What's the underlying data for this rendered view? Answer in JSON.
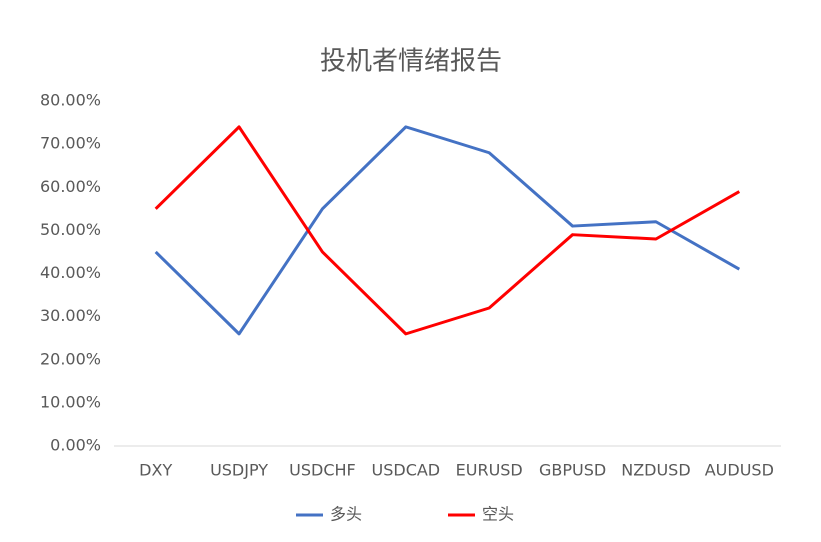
{
  "chart_data": {
    "type": "line",
    "title": "投机者情绪报告",
    "categories": [
      "DXY",
      "USDJPY",
      "USDCHF",
      "USDCAD",
      "EURUSD",
      "GBPUSD",
      "NZDUSD",
      "AUDUSD"
    ],
    "series": [
      {
        "name": "多头",
        "color": "#4472c4",
        "values": [
          45,
          26,
          55,
          74,
          68,
          51,
          52,
          41
        ]
      },
      {
        "name": "空头",
        "color": "#ff0000",
        "values": [
          55,
          74,
          45,
          26,
          32,
          49,
          48,
          59
        ]
      }
    ],
    "ylim": [
      0,
      80
    ],
    "yticks": [
      {
        "value": 0,
        "label": "0.00%"
      },
      {
        "value": 10,
        "label": "10.00%"
      },
      {
        "value": 20,
        "label": "20.00%"
      },
      {
        "value": 30,
        "label": "30.00%"
      },
      {
        "value": 40,
        "label": "40.00%"
      },
      {
        "value": 50,
        "label": "50.00%"
      },
      {
        "value": 60,
        "label": "60.00%"
      },
      {
        "value": 70,
        "label": "70.00%"
      },
      {
        "value": 80,
        "label": "80.00%"
      }
    ],
    "grid": false,
    "legend": "bottom"
  }
}
